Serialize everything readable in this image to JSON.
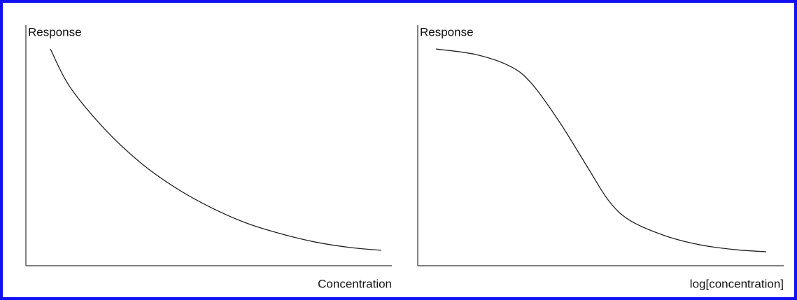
{
  "chart_data": [
    {
      "type": "line",
      "y_label": "Response",
      "x_label": "Concentration",
      "x": [
        6.7,
        12.0,
        21.6,
        31.2,
        40.7,
        50.3,
        59.8,
        69.4,
        78.9,
        88.5,
        97.1
      ],
      "series": [
        {
          "color": "#222222",
          "values": [
            90.1,
            74.4,
            56.7,
            43.0,
            32.6,
            24.4,
            18.0,
            13.4,
            9.9,
            7.6,
            6.4
          ]
        }
      ],
      "xlim": [
        0,
        100
      ],
      "ylim": [
        0,
        100
      ]
    },
    {
      "type": "line",
      "y_label": "Response",
      "x_label": "log[concentration]",
      "x": [
        5.0,
        15.9,
        25.4,
        31.2,
        38.8,
        46.5,
        52.2,
        57.9,
        67.5,
        77.1,
        86.6,
        95.2
      ],
      "series": [
        {
          "color": "#222222",
          "values": [
            90.1,
            87.8,
            82.8,
            75.6,
            59.6,
            40.7,
            27.0,
            18.9,
            12.5,
            8.7,
            6.7,
            5.8
          ]
        }
      ],
      "xlim": [
        0,
        100
      ],
      "ylim": [
        0,
        100
      ]
    }
  ]
}
